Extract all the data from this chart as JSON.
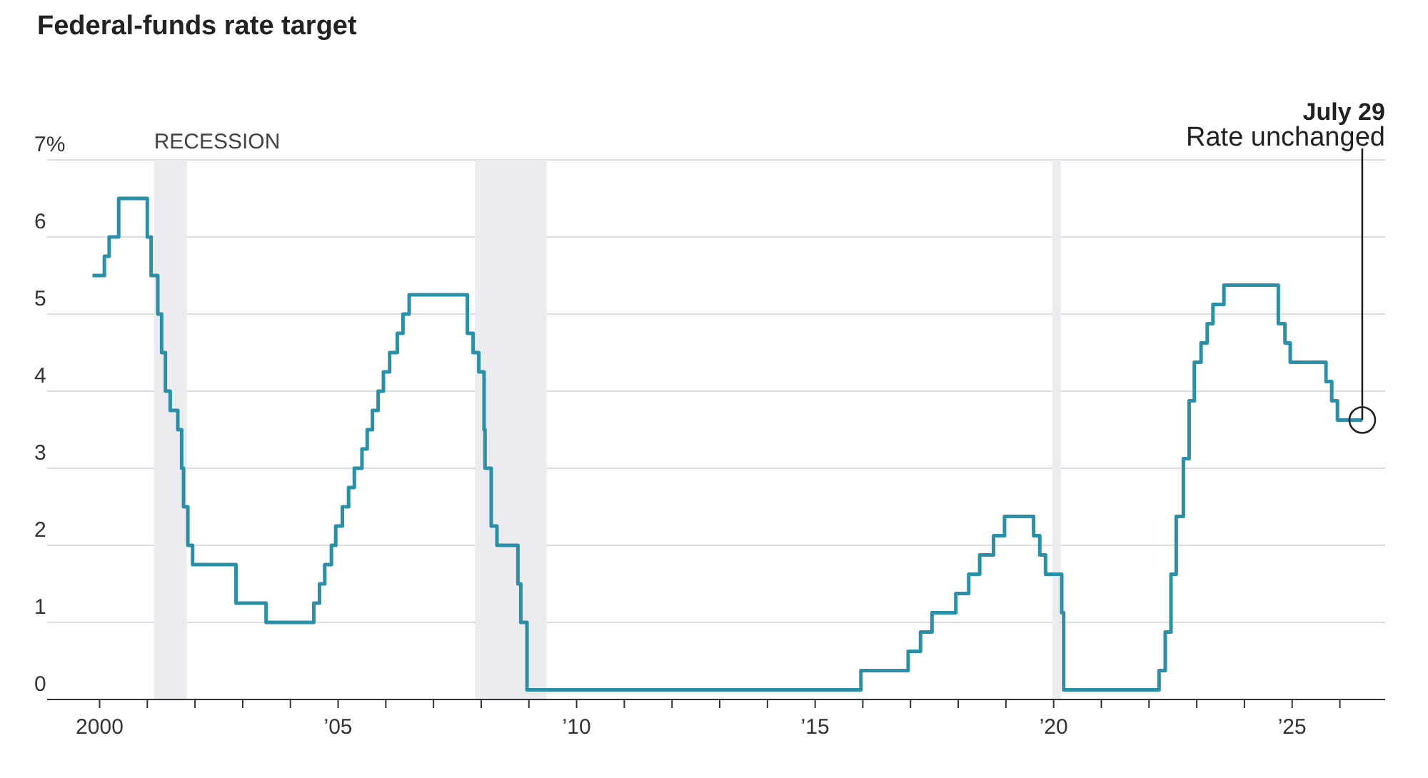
{
  "chart_data": {
    "type": "step",
    "title": "Federal-funds rate target",
    "x": [
      1999.85,
      2000.1,
      2000.2,
      2000.4,
      2001.0,
      2001.08,
      2001.22,
      2001.3,
      2001.38,
      2001.48,
      2001.64,
      2001.72,
      2001.76,
      2001.85,
      2001.95,
      2002.86,
      2003.49,
      2004.49,
      2004.61,
      2004.72,
      2004.86,
      2004.95,
      2005.09,
      2005.22,
      2005.34,
      2005.5,
      2005.61,
      2005.72,
      2005.84,
      2005.95,
      2006.08,
      2006.24,
      2006.36,
      2006.49,
      2007.71,
      2007.83,
      2007.95,
      2008.06,
      2008.08,
      2008.21,
      2008.33,
      2008.77,
      2008.83,
      2008.96,
      2015.96,
      2016.95,
      2017.21,
      2017.45,
      2017.95,
      2018.22,
      2018.45,
      2018.74,
      2018.97,
      2019.58,
      2019.71,
      2019.83,
      2020.17,
      2020.21,
      2022.21,
      2022.34,
      2022.46,
      2022.57,
      2022.72,
      2022.84,
      2022.95,
      2023.09,
      2023.22,
      2023.34,
      2023.57,
      2024.71,
      2024.85,
      2024.96,
      2025.71,
      2025.83,
      2025.95,
      2026.47
    ],
    "series": [
      {
        "color": "#2a90a8",
        "values": [
          5.5,
          5.75,
          6.0,
          6.5,
          6.0,
          5.5,
          5.0,
          4.5,
          4.0,
          3.75,
          3.5,
          3.0,
          2.5,
          2.0,
          1.75,
          1.25,
          1.0,
          1.25,
          1.5,
          1.75,
          2.0,
          2.25,
          2.5,
          2.75,
          3.0,
          3.25,
          3.5,
          3.75,
          4.0,
          4.25,
          4.5,
          4.75,
          5.0,
          5.25,
          4.75,
          4.5,
          4.25,
          3.5,
          3.0,
          2.25,
          2.0,
          1.5,
          1.0,
          0.125,
          0.375,
          0.625,
          0.875,
          1.125,
          1.375,
          1.625,
          1.875,
          2.125,
          2.375,
          2.125,
          1.875,
          1.625,
          1.125,
          0.125,
          0.375,
          0.875,
          1.625,
          2.375,
          3.125,
          3.875,
          4.375,
          4.625,
          4.875,
          5.125,
          5.375,
          4.875,
          4.625,
          4.375,
          4.125,
          3.875,
          3.625,
          3.625
        ]
      }
    ],
    "xlim": [
      1998.9,
      2026.95
    ],
    "xticks": [
      {
        "value": 2000,
        "label": "2000"
      },
      {
        "value": 2001,
        "label": null
      },
      {
        "value": 2002,
        "label": null
      },
      {
        "value": 2003,
        "label": null
      },
      {
        "value": 2004,
        "label": null
      },
      {
        "value": 2005,
        "label": "’05"
      },
      {
        "value": 2006,
        "label": null
      },
      {
        "value": 2007,
        "label": null
      },
      {
        "value": 2008,
        "label": null
      },
      {
        "value": 2009,
        "label": null
      },
      {
        "value": 2010,
        "label": "’10"
      },
      {
        "value": 2011,
        "label": null
      },
      {
        "value": 2012,
        "label": null
      },
      {
        "value": 2013,
        "label": null
      },
      {
        "value": 2014,
        "label": null
      },
      {
        "value": 2015,
        "label": "’15"
      },
      {
        "value": 2016,
        "label": null
      },
      {
        "value": 2017,
        "label": null
      },
      {
        "value": 2018,
        "label": null
      },
      {
        "value": 2019,
        "label": null
      },
      {
        "value": 2020,
        "label": "’20"
      },
      {
        "value": 2021,
        "label": null
      },
      {
        "value": 2022,
        "label": null
      },
      {
        "value": 2023,
        "label": null
      },
      {
        "value": 2024,
        "label": null
      },
      {
        "value": 2025,
        "label": "’25"
      },
      {
        "value": 2026,
        "label": null
      }
    ],
    "ylim": [
      0,
      7
    ],
    "yticks": [
      0,
      1,
      2,
      3,
      4,
      5,
      6,
      {
        "value": 7,
        "label": "7%"
      }
    ],
    "grid": "y",
    "legend": false,
    "bands": [
      {
        "axis": "x",
        "from": 2001.14,
        "to": 2001.83,
        "label": "RECESSION",
        "color": "#ececf0"
      },
      {
        "axis": "x",
        "from": 2007.87,
        "to": 2009.37,
        "color": "#ececf0"
      },
      {
        "axis": "x",
        "from": 2019.97,
        "to": 2020.15,
        "color": "#ececf0"
      }
    ],
    "annotations": [
      {
        "text": "July 29",
        "x": 2026.47,
        "y": 3.625
      },
      {
        "text": "Rate unchanged",
        "x": 2026.47,
        "y": 3.625
      }
    ]
  }
}
